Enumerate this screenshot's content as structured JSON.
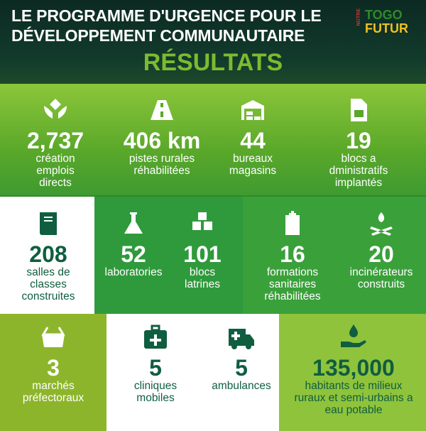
{
  "header": {
    "title_line1": "LE PROGRAMME D'URGENCE POUR LE",
    "title_line2": "DÉVELOPPEMENT COMMUNAUTAIRE",
    "subtitle": "RÉSULTATS",
    "logo": {
      "small": "NOTRE",
      "top": "TOGO",
      "bottom": "FUTUR"
    }
  },
  "colors": {
    "header_bg": "#0c2a22",
    "accent": "#7dbb2f",
    "dark_green_text": "#0f5e40",
    "logo_togo": "#2f8a2a",
    "logo_futur": "#f0c020"
  },
  "stats": [
    {
      "icon": "hands-diamond-icon",
      "value": "2,737",
      "label": [
        "création",
        "emplois",
        "directs"
      ]
    },
    {
      "icon": "road-icon",
      "value": "406 km",
      "label": [
        "pistes rurales",
        "réhabilitées"
      ]
    },
    {
      "icon": "warehouse-icon",
      "value": "44",
      "label": [
        "bureaux",
        "magasins"
      ]
    },
    {
      "icon": "document-grid-icon",
      "value": "19",
      "label": [
        "blocs a",
        "dministratifs",
        "implantés"
      ]
    },
    {
      "icon": "book-icon",
      "value": "208",
      "label": [
        "salles de",
        "classes",
        "construites"
      ]
    },
    {
      "icon": "flask-icon",
      "value": "52",
      "label": [
        "laboratories"
      ]
    },
    {
      "icon": "cubes-icon",
      "value": "101",
      "label": [
        "blocs",
        "latrines"
      ]
    },
    {
      "icon": "hospital-icon",
      "value": "16",
      "label": [
        "formations",
        "sanitaires",
        "réhabilitées"
      ]
    },
    {
      "icon": "campfire-icon",
      "value": "20",
      "label": [
        "incinérateurs",
        "construits"
      ]
    },
    {
      "icon": "basket-icon",
      "value": "3",
      "label": [
        "marchés",
        "préfectoraux"
      ]
    },
    {
      "icon": "medical-kit-icon",
      "value": "5",
      "label": [
        "cliniques",
        "mobiles"
      ]
    },
    {
      "icon": "ambulance-icon",
      "value": "5",
      "label": [
        "ambulances"
      ]
    },
    {
      "icon": "water-hand-icon",
      "value": "135,000",
      "label": [
        "habitants de milieux",
        "ruraux et semi-urbains a",
        "eau potable"
      ]
    }
  ]
}
